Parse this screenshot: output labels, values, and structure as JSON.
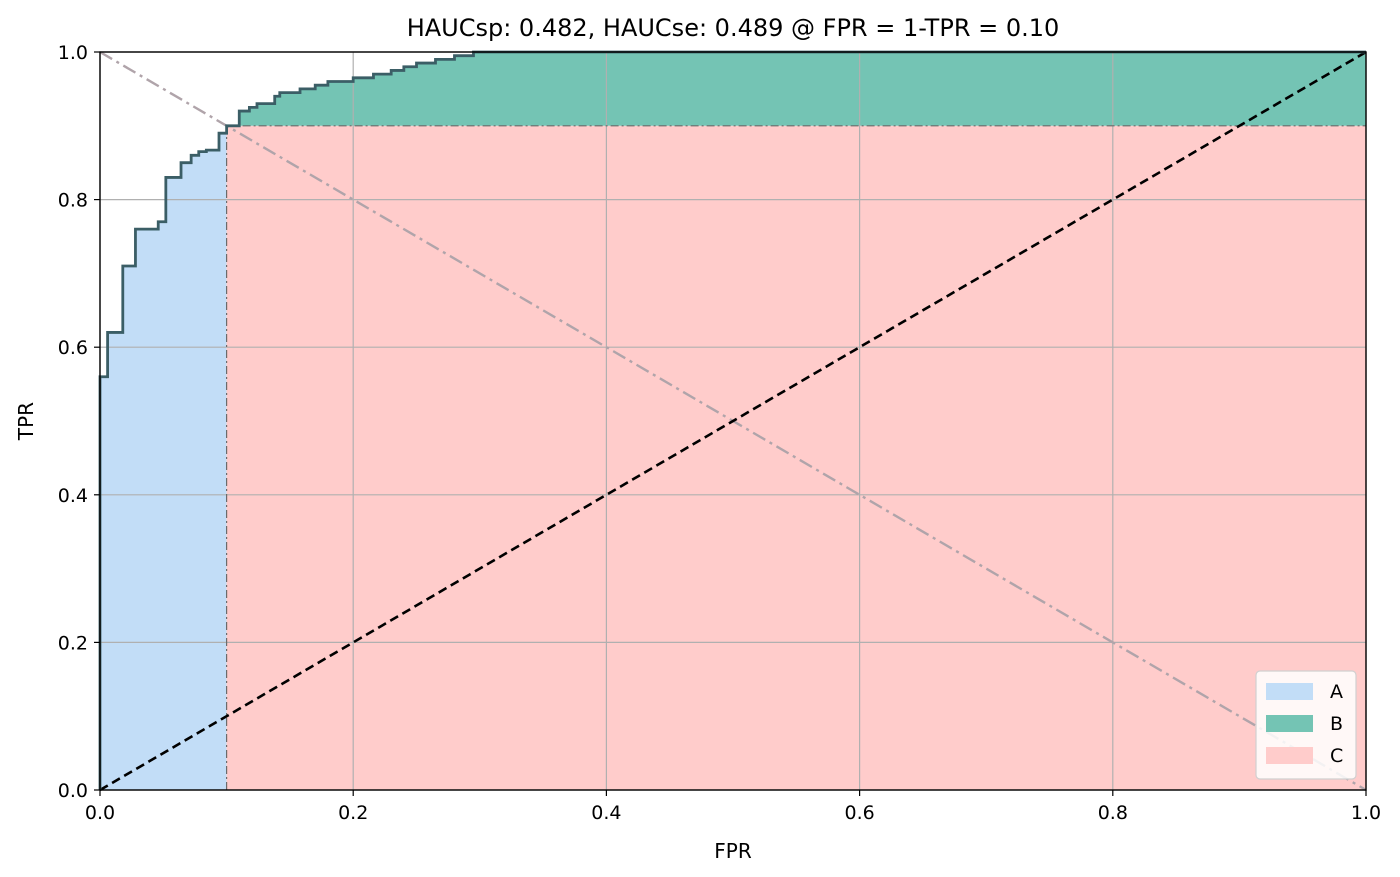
{
  "chart_data": {
    "type": "area",
    "title": "HAUCsp: 0.482, HAUCse: 0.489 @ FPR = 1-TPR = 0.10",
    "xlabel": "FPR",
    "ylabel": "TPR",
    "xlim": [
      0.0,
      1.0
    ],
    "ylim": [
      0.0,
      1.0
    ],
    "x_ticks": [
      "0.0",
      "0.2",
      "0.4",
      "0.6",
      "0.8",
      "1.0"
    ],
    "y_ticks": [
      "0.0",
      "0.2",
      "0.4",
      "0.6",
      "0.8",
      "1.0"
    ],
    "grid": true,
    "threshold": {
      "fpr": 0.1,
      "tpr": 0.9
    },
    "roc_curve": {
      "x": [
        0.0,
        0.0,
        0.006,
        0.006,
        0.018,
        0.018,
        0.028,
        0.028,
        0.046,
        0.046,
        0.052,
        0.052,
        0.064,
        0.064,
        0.072,
        0.072,
        0.078,
        0.078,
        0.084,
        0.084,
        0.094,
        0.094,
        0.1,
        0.1,
        0.11,
        0.11,
        0.118,
        0.118,
        0.124,
        0.124,
        0.138,
        0.138,
        0.142,
        0.142,
        0.158,
        0.158,
        0.17,
        0.17,
        0.18,
        0.18,
        0.2,
        0.2,
        0.216,
        0.216,
        0.23,
        0.23,
        0.24,
        0.24,
        0.25,
        0.25,
        0.265,
        0.265,
        0.28,
        0.28,
        0.295,
        0.295,
        1.0
      ],
      "y": [
        0.0,
        0.56,
        0.56,
        0.62,
        0.62,
        0.71,
        0.71,
        0.76,
        0.76,
        0.77,
        0.77,
        0.83,
        0.83,
        0.85,
        0.85,
        0.86,
        0.86,
        0.865,
        0.865,
        0.867,
        0.867,
        0.89,
        0.89,
        0.9,
        0.9,
        0.92,
        0.92,
        0.925,
        0.925,
        0.93,
        0.93,
        0.94,
        0.94,
        0.945,
        0.945,
        0.95,
        0.95,
        0.955,
        0.955,
        0.96,
        0.96,
        0.965,
        0.965,
        0.97,
        0.97,
        0.975,
        0.975,
        0.98,
        0.98,
        0.985,
        0.985,
        0.99,
        0.99,
        0.995,
        0.995,
        1.0,
        1.0
      ]
    },
    "reference_lines": [
      {
        "type": "diagonal",
        "x": [
          0,
          1
        ],
        "y": [
          0,
          1
        ],
        "style": "dashed",
        "color": "#000000"
      },
      {
        "type": "anti-diagonal",
        "x": [
          0,
          1
        ],
        "y": [
          1,
          0
        ],
        "style": "dashdot",
        "color": "#b0a4aa"
      }
    ],
    "series": [
      {
        "name": "A",
        "color": "#c2ddf7",
        "region": "area under ROC for FPR <= 0.10"
      },
      {
        "name": "B",
        "color": "#74c4b4",
        "region": "area under ROC above TPR = 0.90, FPR >= 0.10"
      },
      {
        "name": "C",
        "color": "#ffcccb",
        "region": "rectangle FPR 0.10-1.0, TPR 0-0.90"
      }
    ],
    "legend_position": "lower-right"
  }
}
